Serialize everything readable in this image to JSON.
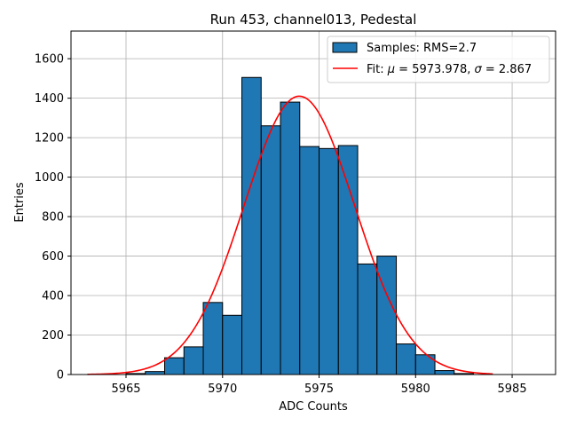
{
  "chart_data": {
    "type": "bar",
    "title": "Run 453, channel013, Pedestal",
    "xlabel": "ADC Counts",
    "ylabel": "Entries",
    "xlim": [
      5962.15,
      5987.25
    ],
    "ylim": [
      0,
      1740
    ],
    "grid": true,
    "legend_position": "top-right",
    "xticks": [
      5965,
      5970,
      5975,
      5980,
      5985
    ],
    "yticks": [
      0,
      200,
      400,
      600,
      800,
      1000,
      1200,
      1400,
      1600
    ],
    "bin_width": 1,
    "series": [
      {
        "name": "Samples: RMS=2.7",
        "kind": "histogram",
        "color": "#1f77b4",
        "bins": [
          {
            "x0": 5965,
            "value": 5
          },
          {
            "x0": 5966,
            "value": 15
          },
          {
            "x0": 5967,
            "value": 85
          },
          {
            "x0": 5968,
            "value": 140
          },
          {
            "x0": 5969,
            "value": 365
          },
          {
            "x0": 5970,
            "value": 300
          },
          {
            "x0": 5971,
            "value": 1505
          },
          {
            "x0": 5972,
            "value": 1260
          },
          {
            "x0": 5973,
            "value": 1380
          },
          {
            "x0": 5974,
            "value": 1155
          },
          {
            "x0": 5975,
            "value": 1145
          },
          {
            "x0": 5976,
            "value": 1160
          },
          {
            "x0": 5977,
            "value": 560
          },
          {
            "x0": 5978,
            "value": 600
          },
          {
            "x0": 5979,
            "value": 155
          },
          {
            "x0": 5980,
            "value": 100
          },
          {
            "x0": 5981,
            "value": 20
          },
          {
            "x0": 5982,
            "value": 5
          }
        ]
      },
      {
        "name": "Fit: μ = 5973.978, σ = 2.867",
        "kind": "gaussian",
        "color": "#ff0000",
        "mu": 5973.978,
        "sigma": 2.867,
        "amplitude": 1410,
        "x_range": [
          5963,
          5984
        ]
      }
    ],
    "legend": {
      "entries": [
        {
          "label": "Samples: RMS=2.7",
          "symbol": "patch",
          "color": "#1f77b4"
        },
        {
          "label_prefix": "Fit: ",
          "mu_symbol": "μ",
          "mu_text": " = 5973.978, ",
          "sigma_symbol": "σ",
          "sigma_text": " = 2.867",
          "symbol": "line",
          "color": "#ff0000"
        }
      ]
    }
  }
}
